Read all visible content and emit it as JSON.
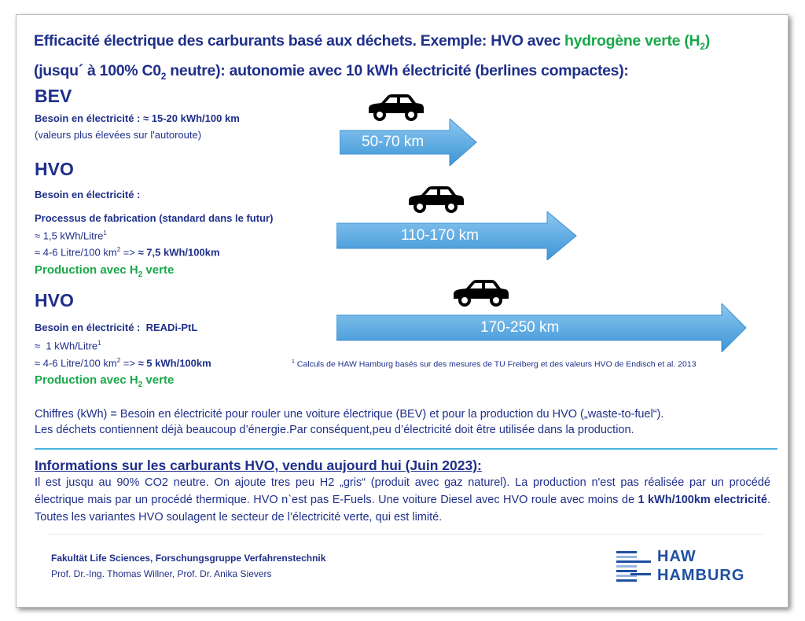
{
  "title": {
    "line1_a": "Efficacité électrique des carburants basé aux déchets. Exemple: HVO avec ",
    "line1_green": "hydrogène verte (H",
    "line1_sub": "2",
    "line1_close": ")",
    "line2_a": "(jusqu´ à 100% C0",
    "line2_sub": "2",
    "line2_b": " neutre): autonomie avec 10 kWh électricité (berlines compactes):"
  },
  "bev": {
    "heading": "BEV",
    "need_label": "Besoin en électricité : ",
    "need_value": "≈ 15-20 kWh/100 km",
    "note": "(valeurs plus élevées sur l'autoroute)",
    "range": "50-70 km"
  },
  "hvo1": {
    "heading": "HVO",
    "need_label": "Besoin en électricité :",
    "process": "Processus de fabrication (standard dans le futur)",
    "per_litre": "≈ 1,5 kWh/Litre",
    "sup1": "1",
    "consumption": "≈ 4-6 Litre/100 km",
    "sup2": "2",
    "arrow_text": " => ",
    "result": "≈ 7,5 kWh/100km",
    "green_a": "Production avec H",
    "green_sub": "2",
    "green_b": " verte",
    "range": "110-170 km"
  },
  "hvo2": {
    "heading": "HVO",
    "need_label": "Besoin en électricité :  ",
    "process": "READi-PtL",
    "per_litre": "≈  1 kWh/Litre",
    "sup1": "1",
    "consumption": "≈ 4-6 Litre/100 km",
    "sup2": "2",
    "arrow_text": " => ",
    "result": "≈ 5 kWh/100km",
    "green_a": "Production avec H",
    "green_sub": "2",
    "green_b": " verte",
    "range": "170-250 km"
  },
  "footnote": {
    "sup": "1",
    "text": " Calculs de HAW Hamburg basés sur des mesures de TU Freiberg et des valeurs HVO de Endisch et al. 2013"
  },
  "explanation": {
    "line1": "Chiffres (kWh) = Besoin en électricité pour rouler une voiture électrique (BEV) et pour la production du HVO („waste-to-fuel“).",
    "line2": "Les déchets contiennent déjà beaucoup d’énergie.Par conséquent,peu d’électricité doit être utilisée dans la production."
  },
  "info": {
    "heading": "Informations sur les carburants HVO, vendu aujourd hui (Juin 2023):",
    "text_a": "Il est jusqu au 90% CO2 neutre. On ajoute tres peu H2 „gris“ (produit avec gaz naturel). La production n'est pas réalisée par un procédé électrique mais par un procédé thermique. HVO n`est pas E-Fuels. Une voiture Diesel avec HVO roule avec moins de ",
    "text_bold": "1 kWh/100km electricité",
    "text_b": ". Toutes les variantes HVO soulagent le secteur de l’électricité verte, qui est limité."
  },
  "footer": {
    "faculty": "Fakultät Life Sciences, Forschungsgruppe Verfahrenstechnik",
    "authors": "Prof. Dr.-Ing. Thomas Willner, Prof. Dr. Anika Sievers",
    "logo_line1": "HAW",
    "logo_line2": "HAMBURG"
  },
  "colors": {
    "navy": "#1f2f8a",
    "green": "#1aa84a",
    "arrow": "#5aaee6",
    "divider": "#4ab3e0"
  }
}
